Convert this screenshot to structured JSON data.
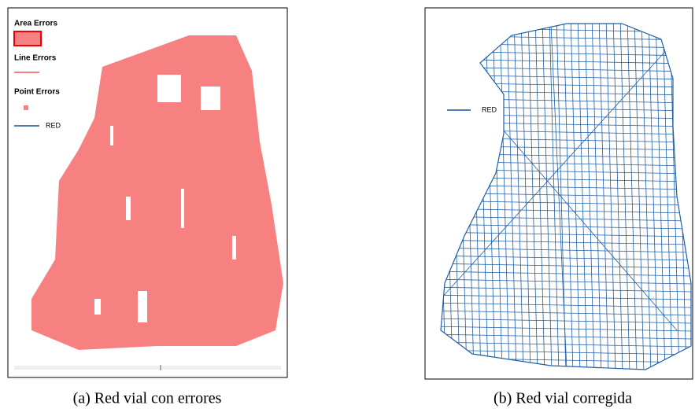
{
  "panels": [
    {
      "legend": [
        "Area Errors",
        "Line Errors",
        "Point Errors",
        "RED"
      ],
      "caption": "(a) Red vial con errores"
    },
    {
      "legend": [
        "RED"
      ],
      "caption": "(b) Red vial corregida"
    }
  ]
}
